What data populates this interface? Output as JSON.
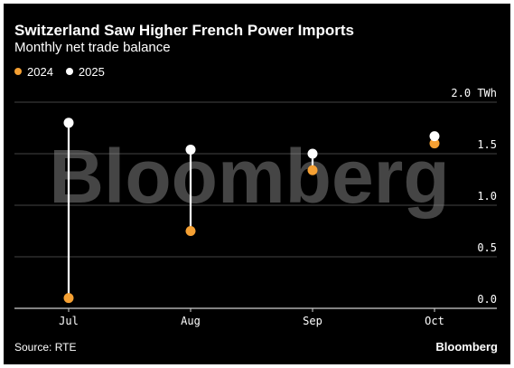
{
  "header": {
    "title": "Switzerland Saw Higher French Power Imports",
    "subtitle": "Monthly net trade balance"
  },
  "legend": [
    {
      "label": "2024",
      "color": "#f5a033"
    },
    {
      "label": "2025",
      "color": "#ffffff"
    }
  ],
  "chart_data": {
    "type": "dot-plot",
    "title": "Switzerland Saw Higher French Power Imports",
    "subtitle": "Monthly net trade balance",
    "categories": [
      "Jul",
      "Aug",
      "Sep",
      "Oct"
    ],
    "series": [
      {
        "name": "2024",
        "color": "#f5a033",
        "values": [
          0.1,
          0.75,
          1.34,
          1.6
        ]
      },
      {
        "name": "2025",
        "color": "#ffffff",
        "values": [
          1.8,
          1.54,
          1.5,
          1.67
        ]
      }
    ],
    "y_unit": "TWh",
    "ylim": [
      0,
      2.0
    ],
    "yticks": [
      "0.0",
      "0.5",
      "1.0",
      "1.5",
      "2.0 TWh"
    ],
    "grid": true,
    "legend_position": "top-left"
  },
  "watermark": "Bloomberg",
  "footer": {
    "source": "Source: RTE",
    "brand": "Bloomberg"
  }
}
